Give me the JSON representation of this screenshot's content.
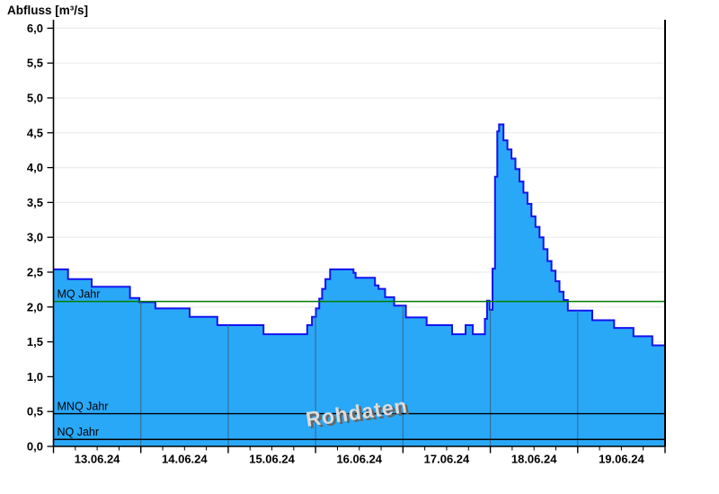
{
  "title": "Abfluss [m³/s]",
  "watermark": "Rohdaten",
  "colors": {
    "area_fill": "#29a8f8",
    "area_stroke": "#1512ef",
    "grid_horizontal": "#ececec",
    "grid_day_line": "#3a6a8c",
    "axis": "#000000",
    "watermark_face": "#dcdcdc",
    "watermark_shadow": "#666666"
  },
  "chart_data": {
    "type": "area",
    "title": "Abfluss [m³/s]",
    "unit": "m³/s",
    "grid": true,
    "legend_position": "none",
    "y_axis": {
      "min": 0,
      "max": 6,
      "step": 0.5,
      "tick_labels": [
        "0,0",
        "0,5",
        "1,0",
        "1,5",
        "2,0",
        "2,5",
        "3,0",
        "3,5",
        "4,0",
        "4,5",
        "5,0",
        "5,5",
        "6,0"
      ]
    },
    "x_axis": {
      "total_hours": 168,
      "major_tick_every_hours": 24,
      "minor_tick_every_hours": 6,
      "day_labels": [
        "13.06.24",
        "14.06.24",
        "15.06.24",
        "16.06.24",
        "17.06.24",
        "18.06.24",
        "19.06.24"
      ]
    },
    "reference_lines": [
      {
        "label": "MQ Jahr",
        "value": 2.08,
        "color": "#007c00",
        "width": 1.5
      },
      {
        "label": "MNQ Jahr",
        "value": 0.47,
        "color": "#000000",
        "width": 1.4
      },
      {
        "label": "NQ Jahr",
        "value": 0.1,
        "color": "#000000",
        "width": 1.4
      }
    ],
    "series": [
      {
        "name": "Rohdaten",
        "end_hour": 168,
        "step_points": [
          [
            0,
            2.54
          ],
          [
            4,
            2.4
          ],
          [
            10.5,
            2.29
          ],
          [
            21,
            2.13
          ],
          [
            23.6,
            2.07
          ],
          [
            28,
            1.98
          ],
          [
            37.4,
            1.86
          ],
          [
            45,
            1.74
          ],
          [
            57.7,
            1.61
          ],
          [
            69.7,
            1.74
          ],
          [
            71,
            1.86
          ],
          [
            72.1,
            1.98
          ],
          [
            73,
            2.12
          ],
          [
            73.8,
            2.26
          ],
          [
            74.7,
            2.4
          ],
          [
            76,
            2.54
          ],
          [
            82.4,
            2.49
          ],
          [
            83,
            2.42
          ],
          [
            88.3,
            2.31
          ],
          [
            89.3,
            2.26
          ],
          [
            91.1,
            2.14
          ],
          [
            93.6,
            2.02
          ],
          [
            96.8,
            1.85
          ],
          [
            102.5,
            1.74
          ],
          [
            109.5,
            1.61
          ],
          [
            113.2,
            1.74
          ],
          [
            115.2,
            1.61
          ],
          [
            118.5,
            1.83
          ],
          [
            119.1,
            2.09
          ],
          [
            119.8,
            1.96
          ],
          [
            120.6,
            2.55
          ],
          [
            121.3,
            3.87
          ],
          [
            121.9,
            4.52
          ],
          [
            122.4,
            4.62
          ],
          [
            123.6,
            4.39
          ],
          [
            124.7,
            4.26
          ],
          [
            125.8,
            4.13
          ],
          [
            126.9,
            3.98
          ],
          [
            128,
            3.8
          ],
          [
            129.1,
            3.64
          ],
          [
            130.2,
            3.48
          ],
          [
            131.3,
            3.3
          ],
          [
            132.4,
            3.15
          ],
          [
            133.5,
            3.0
          ],
          [
            134.6,
            2.83
          ],
          [
            135.7,
            2.66
          ],
          [
            136.8,
            2.52
          ],
          [
            137.9,
            2.37
          ],
          [
            139,
            2.22
          ],
          [
            140.1,
            2.1
          ],
          [
            141.3,
            1.95
          ],
          [
            148,
            1.81
          ],
          [
            154,
            1.7
          ],
          [
            159.3,
            1.58
          ],
          [
            164.5,
            1.45
          ]
        ]
      }
    ]
  }
}
